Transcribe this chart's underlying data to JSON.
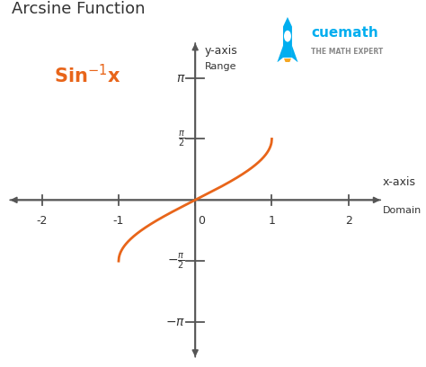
{
  "title": "Arcsine Function",
  "func_label": "Sin",
  "func_label_color": "#E8651A",
  "background_color": "#ffffff",
  "curve_color": "#E8651A",
  "curve_linewidth": 2.0,
  "axis_color": "#555555",
  "tick_color": "#555555",
  "text_color": "#333333",
  "xlim": [
    -2.5,
    2.5
  ],
  "ylim": [
    -4.2,
    4.2
  ],
  "x_tick_positions": [
    -2,
    -1,
    0,
    1,
    2
  ],
  "x_tick_labels": [
    "-2",
    "-1",
    "0",
    "1",
    "2"
  ],
  "y_tick_positions_pos": [
    1.5707963,
    3.1415927
  ],
  "y_tick_positions_neg": [
    -1.5707963,
    -3.1415927
  ],
  "pi_half": 1.5707963267948966,
  "pi_val": 3.141592653589793,
  "xaxis_label": "x-axis",
  "xaxis_sublabel": "Domain",
  "yaxis_label": "y-axis",
  "yaxis_sublabel": "Range",
  "cuemath_text": "cuemath",
  "cuemath_subtext": "THE MATH EXPERT",
  "cuemath_color": "#00AEEF",
  "logo_rocket_color": "#00AEEF"
}
